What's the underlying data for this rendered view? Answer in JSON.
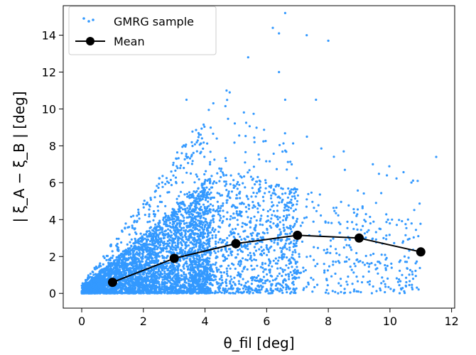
{
  "chart_data": {
    "type": "scatter",
    "xlabel": "θ_fil [deg]",
    "ylabel": "| ξ_A − ξ_B | [deg]",
    "xlim": [
      -0.6,
      12.1
    ],
    "ylim": [
      -0.8,
      15.6
    ],
    "xticks": [
      "0",
      "2",
      "4",
      "6",
      "8",
      "10",
      "12"
    ],
    "yticks": [
      "0",
      "2",
      "4",
      "6",
      "8",
      "10",
      "12",
      "14"
    ],
    "legend_position": "top-left",
    "grid": false,
    "series": [
      {
        "name": "GMRG sample",
        "kind": "scatter",
        "color": "#3399ff",
        "note_points": [
          [
            6.6,
            15.2
          ],
          [
            6.2,
            14.4
          ],
          [
            6.4,
            14.1
          ],
          [
            7.3,
            14.0
          ],
          [
            8.0,
            13.7
          ],
          [
            5.4,
            12.8
          ],
          [
            6.4,
            12.0
          ],
          [
            4.7,
            11.0
          ],
          [
            4.8,
            10.9
          ],
          [
            6.6,
            10.5
          ],
          [
            7.6,
            10.5
          ],
          [
            3.4,
            10.5
          ],
          [
            11.5,
            7.4
          ],
          [
            9.9,
            6.4
          ],
          [
            10.9,
            6.1
          ],
          [
            8.5,
            7.7
          ]
        ]
      },
      {
        "name": "Mean",
        "kind": "line",
        "color": "#000000",
        "x": [
          1,
          3,
          5,
          7,
          9,
          11
        ],
        "y": [
          0.6,
          1.9,
          2.7,
          3.15,
          3.0,
          2.25
        ]
      }
    ]
  }
}
